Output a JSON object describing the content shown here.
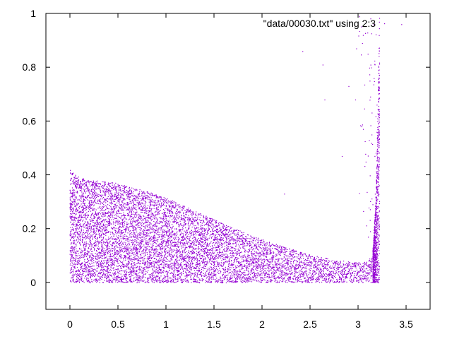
{
  "chart_data": {
    "type": "scatter",
    "title": "",
    "xlabel": "",
    "ylabel": "",
    "xlim": [
      -0.25,
      3.75
    ],
    "ylim": [
      -0.1,
      1.0
    ],
    "x_ticks": [
      0,
      0.5,
      1,
      1.5,
      2,
      2.5,
      3,
      3.5
    ],
    "x_tick_labels": [
      "0",
      "0.5",
      "1",
      "1.5",
      "2",
      "2.5",
      "3",
      "3.5"
    ],
    "y_ticks": [
      0,
      0.2,
      0.4,
      0.6,
      0.8,
      1.0
    ],
    "y_tick_labels": [
      "0",
      "0.2",
      "0.4",
      "0.6",
      "0.8",
      "1"
    ],
    "grid": false,
    "legend_position": "top-right",
    "series": [
      {
        "name": "\"data/00030.txt\" using 2:3",
        "color": "#9400d3",
        "marker": "dot",
        "envelope_upper": [
          [
            0.0,
            0.42
          ],
          [
            0.1,
            0.39
          ],
          [
            0.25,
            0.38
          ],
          [
            0.5,
            0.37
          ],
          [
            0.75,
            0.345
          ],
          [
            1.0,
            0.315
          ],
          [
            1.25,
            0.275
          ],
          [
            1.5,
            0.235
          ],
          [
            1.75,
            0.195
          ],
          [
            2.0,
            0.16
          ],
          [
            2.25,
            0.13
          ],
          [
            2.5,
            0.105
          ],
          [
            2.75,
            0.085
          ],
          [
            3.0,
            0.075
          ],
          [
            3.1,
            0.08
          ],
          [
            3.15,
            0.12
          ],
          [
            3.18,
            0.3
          ],
          [
            3.2,
            0.6
          ],
          [
            3.22,
            1.0
          ]
        ],
        "envelope_lower": [
          [
            0.0,
            0.0
          ],
          [
            3.22,
            0.0
          ]
        ],
        "outliers": [
          [
            2.23,
            0.33
          ],
          [
            2.42,
            0.86
          ],
          [
            2.63,
            0.81
          ],
          [
            2.65,
            0.68
          ],
          [
            2.83,
            0.47
          ],
          [
            2.9,
            0.73
          ],
          [
            2.97,
            0.68
          ],
          [
            2.98,
            0.87
          ],
          [
            3.05,
            0.92
          ],
          [
            3.1,
            0.85
          ],
          [
            3.12,
            0.75
          ],
          [
            3.14,
            0.55
          ],
          [
            3.45,
            0.96
          ]
        ]
      }
    ]
  }
}
